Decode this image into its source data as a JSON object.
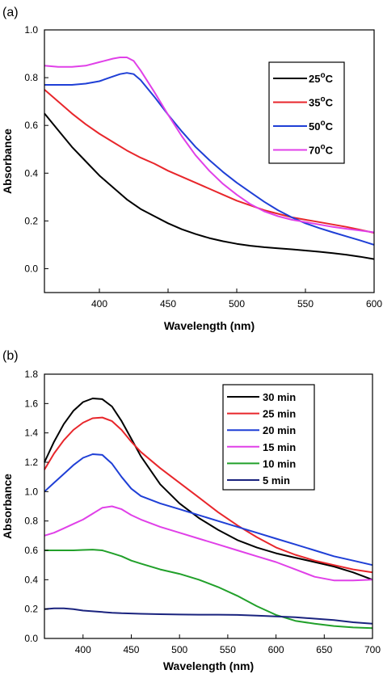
{
  "chart_data": [
    {
      "panel_label": "(a)",
      "type": "line",
      "xlabel": "Wavelength (nm)",
      "ylabel": "Absorbance",
      "xlim": [
        360,
        600
      ],
      "ylim": [
        -0.1,
        1.0
      ],
      "xticks": [
        400,
        450,
        500,
        550,
        600
      ],
      "yticks": [
        0.0,
        0.2,
        0.4,
        0.6,
        0.8,
        1.0
      ],
      "ytick_labels": [
        "0.0",
        "0.2",
        "0.4",
        "0.6",
        "0.8",
        "1.0"
      ],
      "grid": false,
      "legend_position": "top-right",
      "series": [
        {
          "name": "25",
          "name_sup": "o",
          "name_suffix": "C",
          "color": "#000000",
          "x": [
            360,
            370,
            380,
            390,
            400,
            410,
            420,
            430,
            440,
            450,
            460,
            470,
            480,
            490,
            500,
            510,
            520,
            530,
            540,
            550,
            560,
            570,
            580,
            590,
            600
          ],
          "y": [
            0.65,
            0.58,
            0.51,
            0.45,
            0.39,
            0.34,
            0.29,
            0.25,
            0.22,
            0.19,
            0.165,
            0.145,
            0.128,
            0.115,
            0.104,
            0.096,
            0.09,
            0.085,
            0.081,
            0.076,
            0.071,
            0.065,
            0.058,
            0.05,
            0.04
          ]
        },
        {
          "name": "35",
          "name_sup": "o",
          "name_suffix": "C",
          "color": "#e8262b",
          "x": [
            360,
            370,
            380,
            390,
            400,
            410,
            420,
            430,
            440,
            450,
            460,
            470,
            480,
            490,
            500,
            510,
            520,
            530,
            540,
            550,
            560,
            570,
            580,
            590,
            600
          ],
          "y": [
            0.75,
            0.7,
            0.65,
            0.605,
            0.565,
            0.53,
            0.495,
            0.465,
            0.44,
            0.41,
            0.385,
            0.36,
            0.335,
            0.31,
            0.285,
            0.265,
            0.245,
            0.23,
            0.215,
            0.205,
            0.195,
            0.185,
            0.175,
            0.163,
            0.15
          ]
        },
        {
          "name": "50",
          "name_sup": "o",
          "name_suffix": "C",
          "color": "#1f3fd6",
          "x": [
            360,
            370,
            380,
            390,
            400,
            410,
            415,
            420,
            425,
            430,
            440,
            450,
            460,
            470,
            480,
            490,
            500,
            510,
            520,
            530,
            540,
            550,
            560,
            570,
            580,
            590,
            600
          ],
          "y": [
            0.77,
            0.77,
            0.77,
            0.775,
            0.785,
            0.805,
            0.815,
            0.82,
            0.815,
            0.79,
            0.72,
            0.645,
            0.575,
            0.51,
            0.455,
            0.405,
            0.36,
            0.32,
            0.28,
            0.245,
            0.215,
            0.19,
            0.17,
            0.152,
            0.135,
            0.118,
            0.1
          ]
        },
        {
          "name": "70",
          "name_sup": "o",
          "name_suffix": "C",
          "color": "#e040e8",
          "x": [
            360,
            370,
            380,
            390,
            400,
            410,
            415,
            420,
            425,
            430,
            440,
            450,
            460,
            470,
            480,
            490,
            500,
            510,
            520,
            530,
            540,
            550,
            560,
            570,
            580,
            590,
            600
          ],
          "y": [
            0.85,
            0.845,
            0.845,
            0.85,
            0.865,
            0.88,
            0.885,
            0.885,
            0.87,
            0.83,
            0.74,
            0.645,
            0.555,
            0.475,
            0.41,
            0.355,
            0.31,
            0.27,
            0.24,
            0.22,
            0.205,
            0.195,
            0.185,
            0.175,
            0.167,
            0.16,
            0.152
          ]
        }
      ]
    },
    {
      "panel_label": "(b)",
      "type": "line",
      "xlabel": "Wavelength (nm)",
      "ylabel": "Absorbance",
      "xlim": [
        360,
        700
      ],
      "ylim": [
        0.0,
        1.8
      ],
      "xticks": [
        400,
        450,
        500,
        550,
        600,
        650,
        700
      ],
      "yticks": [
        0.0,
        0.2,
        0.4,
        0.6,
        0.8,
        1.0,
        1.2,
        1.4,
        1.6,
        1.8
      ],
      "ytick_labels": [
        "0.0",
        "0.2",
        "0.4",
        "0.6",
        "0.8",
        "1.0",
        "1.2",
        "1.4",
        "1.6",
        "1.8"
      ],
      "grid": false,
      "legend_position": "top-right",
      "series": [
        {
          "name": "30 min",
          "color": "#000000",
          "x": [
            360,
            370,
            380,
            390,
            400,
            410,
            420,
            430,
            440,
            450,
            460,
            480,
            500,
            520,
            540,
            560,
            580,
            600,
            620,
            640,
            660,
            680,
            700
          ],
          "y": [
            1.2,
            1.34,
            1.46,
            1.55,
            1.61,
            1.635,
            1.63,
            1.58,
            1.48,
            1.36,
            1.24,
            1.05,
            0.92,
            0.82,
            0.74,
            0.67,
            0.62,
            0.58,
            0.55,
            0.52,
            0.49,
            0.45,
            0.4
          ]
        },
        {
          "name": "25 min",
          "color": "#e8262b",
          "x": [
            360,
            370,
            380,
            390,
            400,
            410,
            420,
            430,
            440,
            450,
            460,
            480,
            500,
            520,
            540,
            560,
            580,
            600,
            620,
            640,
            660,
            680,
            700
          ],
          "y": [
            1.15,
            1.26,
            1.35,
            1.42,
            1.47,
            1.5,
            1.505,
            1.48,
            1.42,
            1.34,
            1.27,
            1.16,
            1.06,
            0.96,
            0.86,
            0.77,
            0.69,
            0.62,
            0.57,
            0.53,
            0.5,
            0.47,
            0.45
          ]
        },
        {
          "name": "20 min",
          "color": "#1f3fd6",
          "x": [
            360,
            370,
            380,
            390,
            400,
            410,
            420,
            430,
            440,
            450,
            460,
            480,
            500,
            520,
            540,
            560,
            580,
            600,
            620,
            640,
            660,
            680,
            700
          ],
          "y": [
            1.0,
            1.06,
            1.12,
            1.18,
            1.23,
            1.255,
            1.25,
            1.19,
            1.1,
            1.02,
            0.97,
            0.92,
            0.88,
            0.84,
            0.8,
            0.76,
            0.72,
            0.68,
            0.64,
            0.6,
            0.56,
            0.53,
            0.5
          ]
        },
        {
          "name": "15 min",
          "color": "#e040e8",
          "x": [
            360,
            370,
            380,
            390,
            400,
            410,
            420,
            430,
            440,
            450,
            460,
            480,
            500,
            520,
            540,
            560,
            580,
            600,
            620,
            640,
            660,
            680,
            700
          ],
          "y": [
            0.7,
            0.72,
            0.75,
            0.78,
            0.81,
            0.85,
            0.89,
            0.9,
            0.88,
            0.84,
            0.81,
            0.76,
            0.72,
            0.68,
            0.64,
            0.6,
            0.56,
            0.52,
            0.47,
            0.42,
            0.395,
            0.395,
            0.4
          ]
        },
        {
          "name": "10 min",
          "color": "#21a02a",
          "x": [
            360,
            370,
            380,
            390,
            400,
            410,
            420,
            430,
            440,
            450,
            460,
            480,
            500,
            520,
            540,
            560,
            580,
            600,
            620,
            640,
            660,
            680,
            700
          ],
          "y": [
            0.6,
            0.6,
            0.6,
            0.6,
            0.603,
            0.605,
            0.6,
            0.58,
            0.56,
            0.53,
            0.51,
            0.47,
            0.44,
            0.4,
            0.35,
            0.29,
            0.22,
            0.16,
            0.12,
            0.1,
            0.085,
            0.075,
            0.07
          ]
        },
        {
          "name": "5 min",
          "color": "#1a237e",
          "x": [
            360,
            370,
            380,
            390,
            400,
            410,
            420,
            430,
            440,
            450,
            460,
            480,
            500,
            520,
            540,
            560,
            580,
            600,
            620,
            640,
            660,
            680,
            700
          ],
          "y": [
            0.2,
            0.205,
            0.205,
            0.2,
            0.19,
            0.185,
            0.18,
            0.175,
            0.172,
            0.17,
            0.168,
            0.165,
            0.163,
            0.162,
            0.162,
            0.16,
            0.155,
            0.15,
            0.145,
            0.135,
            0.125,
            0.11,
            0.1
          ]
        }
      ]
    }
  ]
}
